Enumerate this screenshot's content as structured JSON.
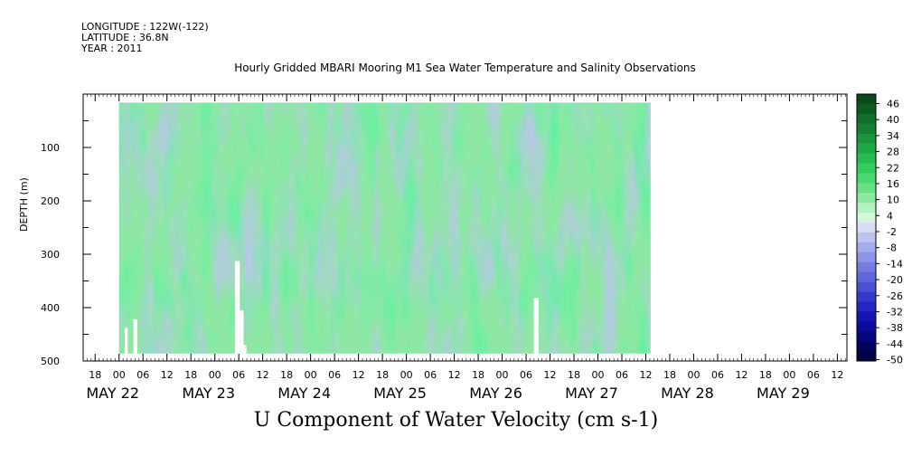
{
  "header": {
    "longitude": "LONGITUDE : 122W(-122)",
    "latitude": "LATITUDE : 36.8N",
    "year": "YEAR : 2011"
  },
  "chart_data": {
    "type": "heatmap",
    "title": "Hourly Gridded MBARI Mooring M1 Sea Water Temperature and Salinity Observations",
    "xlabel": "U Component of Water Velocity (cm s-1)",
    "ylabel": "DEPTH (m)",
    "y_axis": {
      "reversed": true,
      "ylim": [
        0,
        500
      ],
      "ticks": [
        100,
        200,
        300,
        400,
        500
      ]
    },
    "x_axis": {
      "start_day": 21.625,
      "end_day": 29.6,
      "hour_ticks": [
        "18",
        "00",
        "06",
        "12",
        "18",
        "00",
        "06",
        "12",
        "18",
        "00",
        "06",
        "12",
        "18",
        "00",
        "06",
        "12",
        "18",
        "00",
        "06",
        "12",
        "18",
        "00",
        "06",
        "12",
        "18",
        "00",
        "06",
        "12",
        "18",
        "00",
        "06",
        "12"
      ],
      "date_labels": [
        "MAY 22",
        "MAY 23",
        "MAY 24",
        "MAY 25",
        "MAY 26",
        "MAY 27",
        "MAY 28",
        "MAY 29"
      ]
    },
    "data_extent": {
      "x_start_day": 22.0,
      "x_end_day": 27.55,
      "depth_top": 16,
      "depth_bottom": 486
    },
    "gaps": [
      {
        "x0": 22.06,
        "x1": 22.09,
        "depth_top": 438,
        "depth_bottom": 486
      },
      {
        "x0": 22.15,
        "x1": 22.19,
        "depth_top": 422,
        "depth_bottom": 486
      },
      {
        "x0": 23.21,
        "x1": 23.26,
        "depth_top": 313,
        "depth_bottom": 486
      },
      {
        "x0": 23.26,
        "x1": 23.3,
        "depth_top": 405,
        "depth_bottom": 486
      },
      {
        "x0": 23.3,
        "x1": 23.33,
        "depth_top": 470,
        "depth_bottom": 486
      },
      {
        "x0": 26.33,
        "x1": 26.38,
        "depth_top": 382,
        "depth_bottom": 486
      }
    ],
    "colorbar": {
      "labels": [
        "46",
        "40",
        "34",
        "28",
        "22",
        "16",
        "10",
        "4",
        "-2",
        "-8",
        "-14",
        "-20",
        "-26",
        "-32",
        "-38",
        "-44",
        "-50"
      ],
      "colors": [
        "#0a4a1a",
        "#0d5c22",
        "#116e2b",
        "#158033",
        "#1a943d",
        "#1fa846",
        "#26bc51",
        "#33cf5e",
        "#4ad96f",
        "#68e184",
        "#8aeaa0",
        "#b2f2c0",
        "#d2f7d9",
        "#d8dcf6",
        "#bcc3f1",
        "#a3abec",
        "#8c94e6",
        "#757ce0",
        "#5f66d9",
        "#4a50d2",
        "#3539ca",
        "#2326c0",
        "#1416b1",
        "#0b0c9c",
        "#06077f",
        "#03035f",
        "#020244"
      ]
    },
    "grid": false
  }
}
